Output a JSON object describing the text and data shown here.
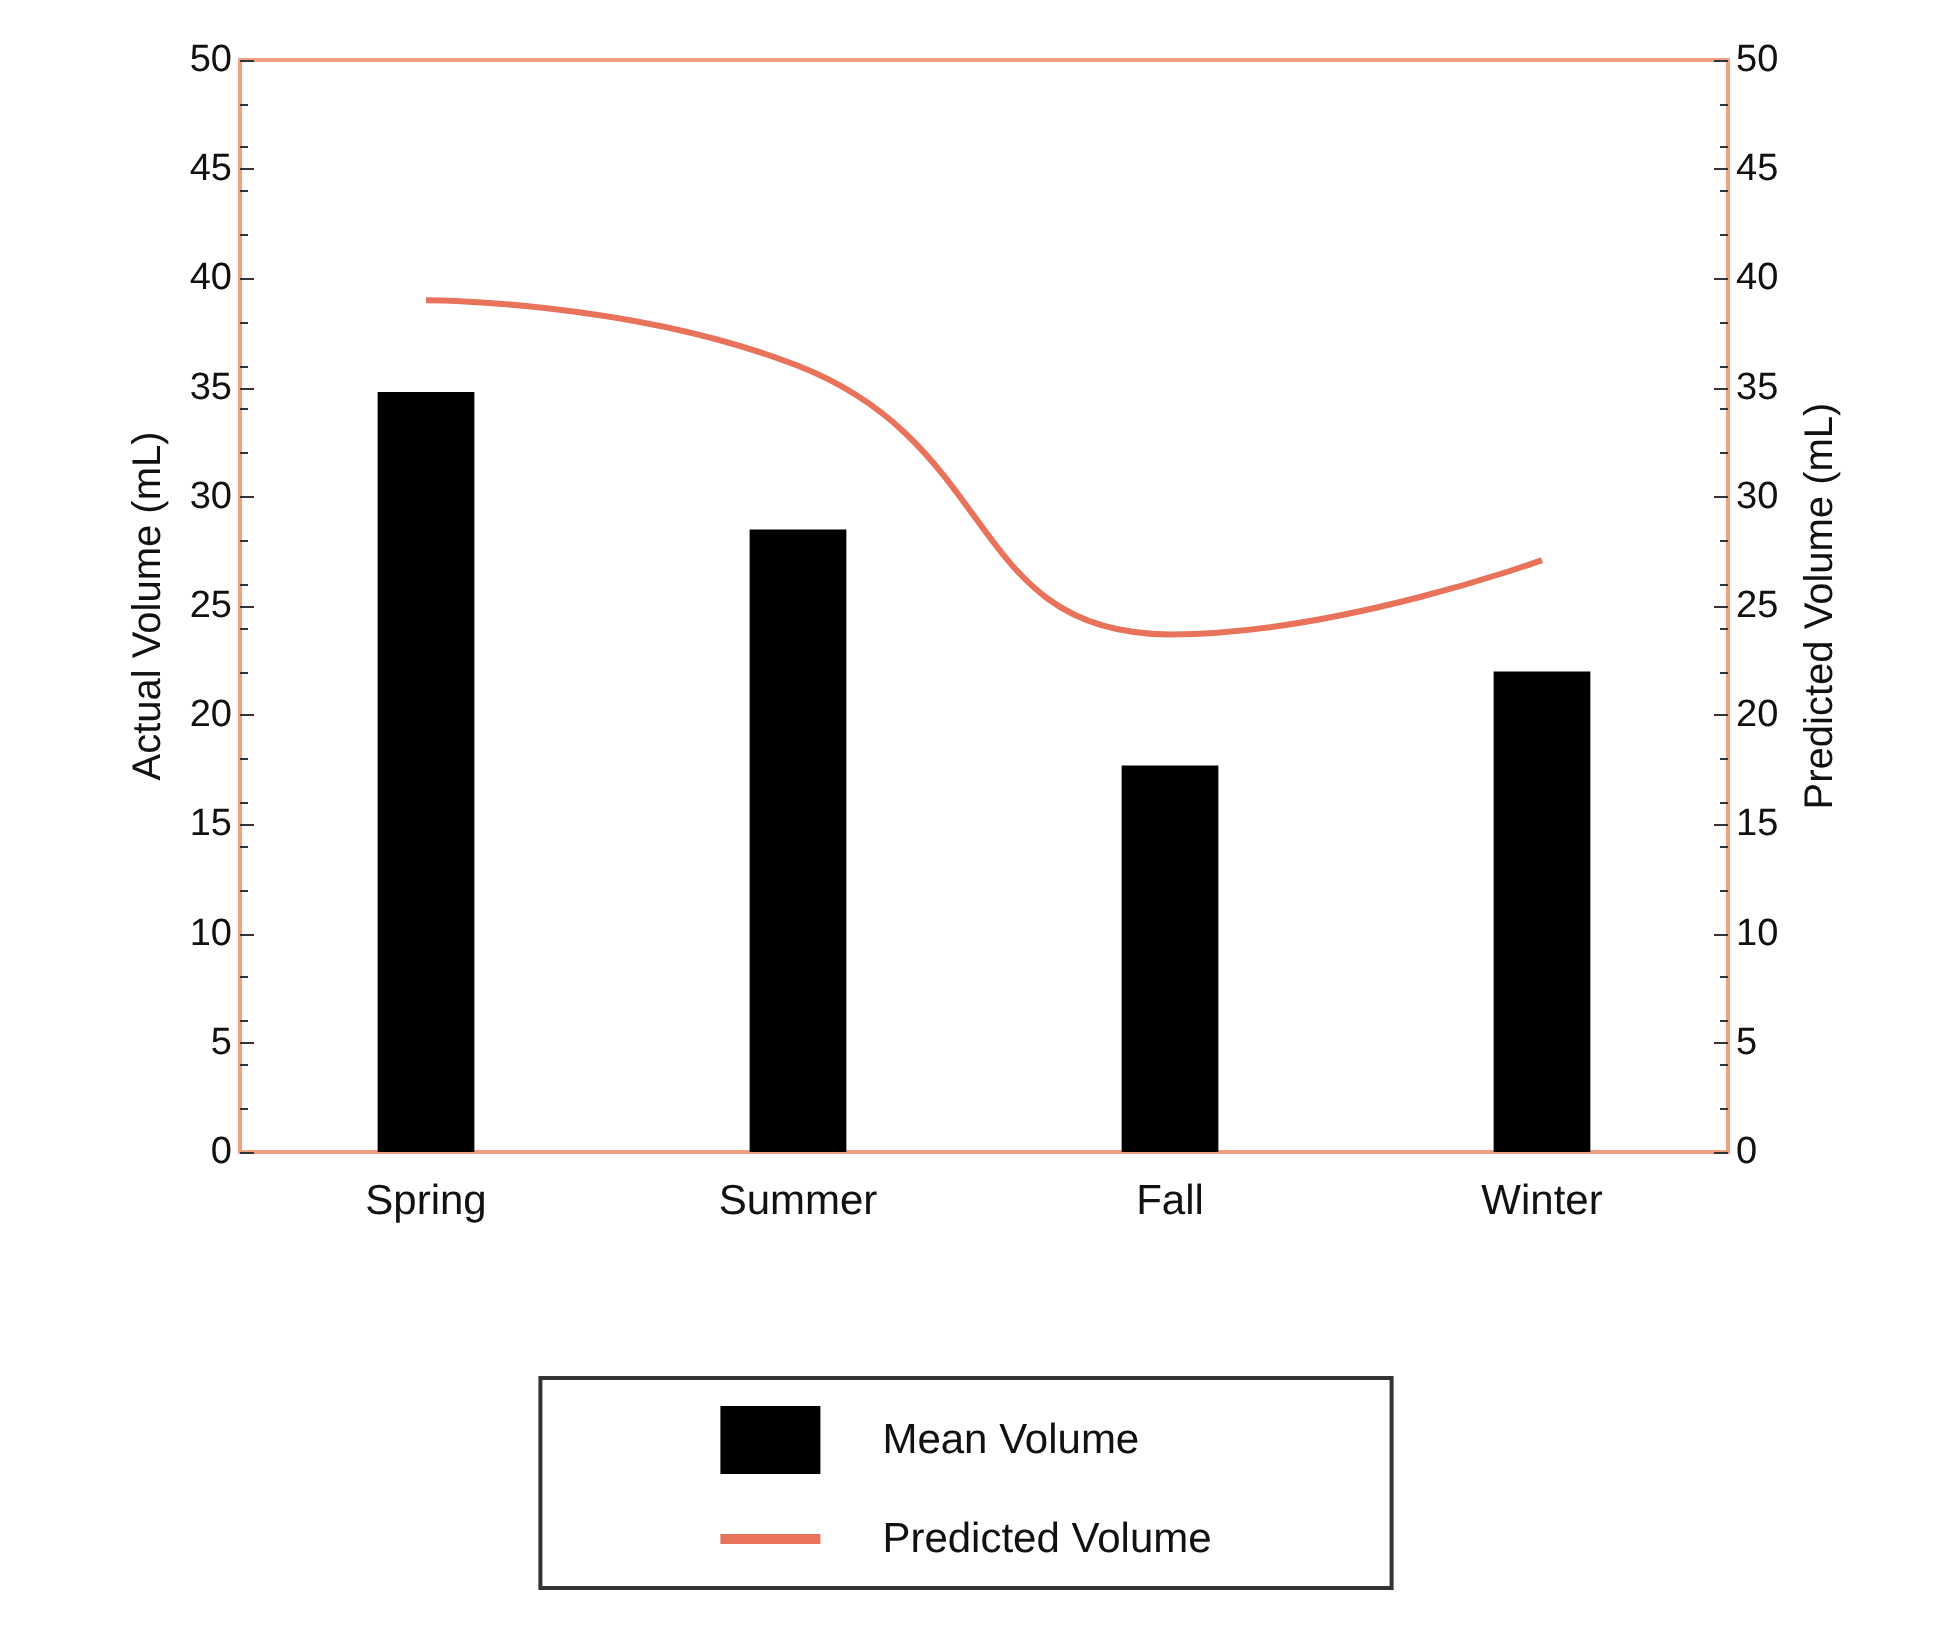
{
  "chart_data": {
    "type": "bar",
    "categories": [
      "Spring",
      "Summer",
      "Fall",
      "Winter"
    ],
    "series": [
      {
        "name": "Mean Volume",
        "color": "#000000",
        "values": [
          34.8,
          28.5,
          17.7,
          22.0
        ]
      },
      {
        "name": "Predicted Volume",
        "type": "line",
        "color": "#e8735a",
        "values": [
          39.0,
          36.0,
          23.7,
          27.1
        ]
      }
    ],
    "ylabel": "Actual Volume (mL)",
    "y2label": "Predicted Volume (mL)",
    "ylim": [
      0,
      50
    ],
    "yticks": [
      0,
      5,
      10,
      15,
      20,
      25,
      30,
      35,
      40,
      45,
      50
    ],
    "y2lim": [
      0,
      50
    ],
    "y2ticks": [
      0,
      5,
      10,
      15,
      20,
      25,
      30,
      35,
      40,
      45,
      50
    ],
    "grid": false,
    "legend": "bottom",
    "marker": "none",
    "line_style": "solid"
  }
}
